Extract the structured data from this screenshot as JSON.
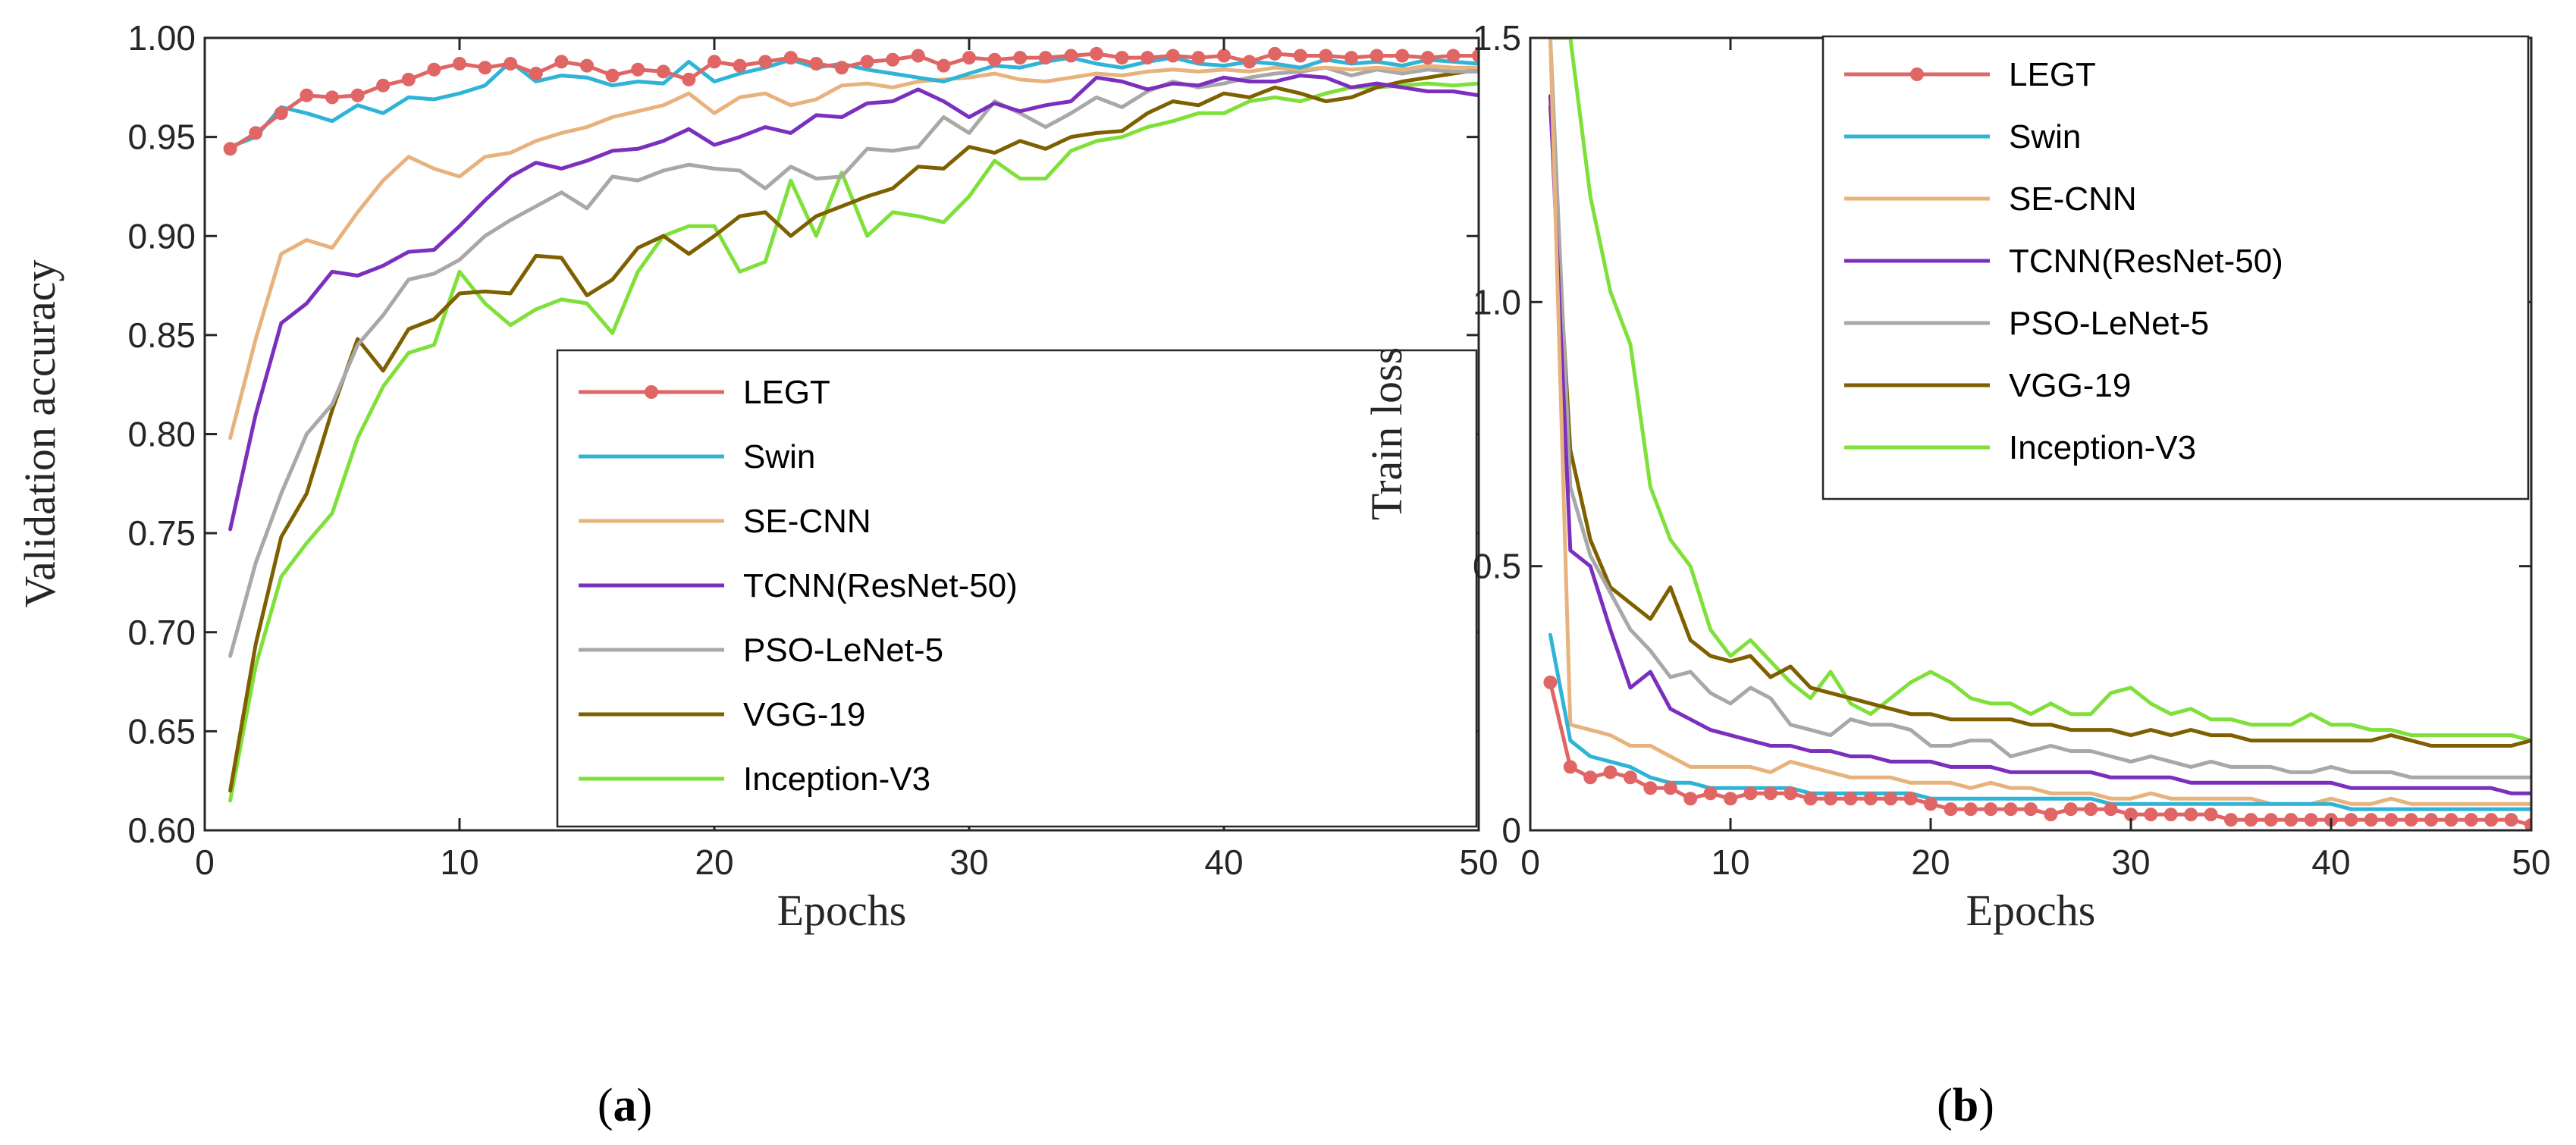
{
  "series_meta": [
    {
      "name": "LEGT",
      "color": "#e06666",
      "marker": "circle"
    },
    {
      "name": "Swin",
      "color": "#2fb4d8",
      "marker": "none"
    },
    {
      "name": "SE-CNN",
      "color": "#e8b27d",
      "marker": "none"
    },
    {
      "name": "TCNN(ResNet-50)",
      "color": "#7b2fbe",
      "marker": "none"
    },
    {
      "name": "PSO-LeNet-5",
      "color": "#a8a8a8",
      "marker": "none"
    },
    {
      "name": "VGG-19",
      "color": "#7f6000",
      "marker": "none"
    },
    {
      "name": "Inception-V3",
      "color": "#7fe03a",
      "marker": "none"
    }
  ],
  "captions": {
    "a": "a",
    "b": "b"
  },
  "chart_data": [
    {
      "type": "line",
      "panel": "a",
      "title": "",
      "xlabel": "Epochs",
      "ylabel": "Validation accuracy",
      "xlim": [
        0,
        50
      ],
      "ylim": [
        0.6,
        1.0
      ],
      "xticks": [
        0,
        10,
        20,
        30,
        40,
        50
      ],
      "xtick_labels": [
        "0",
        "10",
        "20",
        "30",
        "40",
        "50"
      ],
      "yticks": [
        0.6,
        0.65,
        0.7,
        0.75,
        0.8,
        0.85,
        0.9,
        0.95,
        1.0
      ],
      "ytick_labels": [
        "0.60",
        "0.65",
        "0.70",
        "0.75",
        "0.80",
        "0.85",
        "0.90",
        "0.95",
        "1.00"
      ],
      "grid": false,
      "legend_position": "lower-right",
      "x": [
        1,
        2,
        3,
        4,
        5,
        6,
        7,
        8,
        9,
        10,
        11,
        12,
        13,
        14,
        15,
        16,
        17,
        18,
        19,
        20,
        21,
        22,
        23,
        24,
        25,
        26,
        27,
        28,
        29,
        30,
        31,
        32,
        33,
        34,
        35,
        36,
        37,
        38,
        39,
        40,
        41,
        42,
        43,
        44,
        45,
        46,
        47,
        48,
        49,
        50
      ],
      "series": [
        {
          "name": "LEGT",
          "values": [
            0.944,
            0.952,
            0.962,
            0.971,
            0.97,
            0.971,
            0.976,
            0.979,
            0.984,
            0.987,
            0.985,
            0.987,
            0.982,
            0.988,
            0.986,
            0.981,
            0.984,
            0.983,
            0.979,
            0.988,
            0.986,
            0.988,
            0.99,
            0.987,
            0.985,
            0.988,
            0.989,
            0.991,
            0.986,
            0.99,
            0.989,
            0.99,
            0.99,
            0.991,
            0.992,
            0.99,
            0.99,
            0.991,
            0.99,
            0.991,
            0.988,
            0.992,
            0.991,
            0.991,
            0.99,
            0.991,
            0.991,
            0.99,
            0.991,
            0.991
          ]
        },
        {
          "name": "Swin",
          "values": [
            0.945,
            0.95,
            0.965,
            0.962,
            0.958,
            0.966,
            0.962,
            0.97,
            0.969,
            0.972,
            0.976,
            0.988,
            0.978,
            0.981,
            0.98,
            0.976,
            0.978,
            0.977,
            0.988,
            0.978,
            0.982,
            0.985,
            0.989,
            0.985,
            0.987,
            0.984,
            0.982,
            0.98,
            0.978,
            0.982,
            0.986,
            0.985,
            0.988,
            0.99,
            0.987,
            0.985,
            0.988,
            0.99,
            0.987,
            0.986,
            0.988,
            0.987,
            0.985,
            0.989,
            0.987,
            0.988,
            0.986,
            0.989,
            0.988,
            0.987
          ]
        },
        {
          "name": "SE-CNN",
          "values": [
            0.798,
            0.848,
            0.891,
            0.898,
            0.894,
            0.912,
            0.928,
            0.94,
            0.934,
            0.93,
            0.94,
            0.942,
            0.948,
            0.952,
            0.955,
            0.96,
            0.963,
            0.966,
            0.972,
            0.962,
            0.97,
            0.972,
            0.966,
            0.969,
            0.976,
            0.977,
            0.975,
            0.978,
            0.979,
            0.98,
            0.982,
            0.979,
            0.978,
            0.98,
            0.982,
            0.981,
            0.983,
            0.984,
            0.983,
            0.984,
            0.983,
            0.985,
            0.984,
            0.985,
            0.984,
            0.985,
            0.984,
            0.986,
            0.985,
            0.985
          ]
        },
        {
          "name": "TCNN(ResNet-50)",
          "values": [
            0.752,
            0.81,
            0.856,
            0.866,
            0.882,
            0.88,
            0.885,
            0.892,
            0.893,
            0.905,
            0.918,
            0.93,
            0.937,
            0.934,
            0.938,
            0.943,
            0.944,
            0.948,
            0.954,
            0.946,
            0.95,
            0.955,
            0.952,
            0.961,
            0.96,
            0.967,
            0.968,
            0.974,
            0.968,
            0.96,
            0.967,
            0.963,
            0.966,
            0.968,
            0.98,
            0.978,
            0.974,
            0.977,
            0.976,
            0.98,
            0.978,
            0.978,
            0.981,
            0.98,
            0.975,
            0.977,
            0.975,
            0.973,
            0.973,
            0.971
          ]
        },
        {
          "name": "PSO-LeNet-5",
          "values": [
            0.688,
            0.735,
            0.77,
            0.8,
            0.815,
            0.845,
            0.86,
            0.878,
            0.881,
            0.888,
            0.9,
            0.908,
            0.915,
            0.922,
            0.914,
            0.93,
            0.928,
            0.933,
            0.936,
            0.934,
            0.933,
            0.924,
            0.935,
            0.929,
            0.93,
            0.944,
            0.943,
            0.945,
            0.96,
            0.952,
            0.968,
            0.962,
            0.955,
            0.962,
            0.97,
            0.965,
            0.973,
            0.978,
            0.975,
            0.977,
            0.98,
            0.982,
            0.983,
            0.985,
            0.981,
            0.984,
            0.982,
            0.984,
            0.983,
            0.983
          ]
        },
        {
          "name": "VGG-19",
          "values": [
            0.62,
            0.694,
            0.748,
            0.77,
            0.812,
            0.848,
            0.832,
            0.853,
            0.858,
            0.871,
            0.872,
            0.871,
            0.89,
            0.889,
            0.87,
            0.878,
            0.894,
            0.9,
            0.891,
            0.9,
            0.91,
            0.912,
            0.9,
            0.91,
            0.915,
            0.92,
            0.924,
            0.935,
            0.934,
            0.945,
            0.942,
            0.948,
            0.944,
            0.95,
            0.952,
            0.953,
            0.962,
            0.968,
            0.966,
            0.972,
            0.97,
            0.975,
            0.972,
            0.968,
            0.97,
            0.975,
            0.978,
            0.98,
            0.982,
            0.984
          ]
        },
        {
          "name": "Inception-V3",
          "values": [
            0.615,
            0.683,
            0.728,
            0.745,
            0.76,
            0.798,
            0.824,
            0.841,
            0.845,
            0.882,
            0.866,
            0.855,
            0.863,
            0.868,
            0.866,
            0.851,
            0.882,
            0.9,
            0.905,
            0.905,
            0.882,
            0.887,
            0.928,
            0.9,
            0.932,
            0.9,
            0.912,
            0.91,
            0.907,
            0.92,
            0.938,
            0.929,
            0.929,
            0.943,
            0.948,
            0.95,
            0.955,
            0.958,
            0.962,
            0.962,
            0.968,
            0.97,
            0.968,
            0.972,
            0.975,
            0.975,
            0.976,
            0.977,
            0.976,
            0.977
          ]
        }
      ]
    },
    {
      "type": "line",
      "panel": "b",
      "title": "",
      "xlabel": "Epochs",
      "ylabel": "Train loss",
      "xlim": [
        0,
        50
      ],
      "ylim": [
        0,
        1.5
      ],
      "xticks": [
        0,
        10,
        20,
        30,
        40,
        50
      ],
      "xtick_labels": [
        "0",
        "10",
        "20",
        "30",
        "40",
        "50"
      ],
      "yticks": [
        0,
        0.5,
        1.0,
        1.5
      ],
      "ytick_labels": [
        "0",
        "0.5",
        "1.0",
        "1.5"
      ],
      "grid": false,
      "legend_position": "top-right",
      "x": [
        1,
        2,
        3,
        4,
        5,
        6,
        7,
        8,
        9,
        10,
        11,
        12,
        13,
        14,
        15,
        16,
        17,
        18,
        19,
        20,
        21,
        22,
        23,
        24,
        25,
        26,
        27,
        28,
        29,
        30,
        31,
        32,
        33,
        34,
        35,
        36,
        37,
        38,
        39,
        40,
        41,
        42,
        43,
        44,
        45,
        46,
        47,
        48,
        49,
        50
      ],
      "series": [
        {
          "name": "LEGT",
          "values": [
            0.28,
            0.12,
            0.1,
            0.11,
            0.1,
            0.08,
            0.08,
            0.06,
            0.07,
            0.06,
            0.07,
            0.07,
            0.07,
            0.06,
            0.06,
            0.06,
            0.06,
            0.06,
            0.06,
            0.05,
            0.04,
            0.04,
            0.04,
            0.04,
            0.04,
            0.03,
            0.04,
            0.04,
            0.04,
            0.03,
            0.03,
            0.03,
            0.03,
            0.03,
            0.02,
            0.02,
            0.02,
            0.02,
            0.02,
            0.02,
            0.02,
            0.02,
            0.02,
            0.02,
            0.02,
            0.02,
            0.02,
            0.02,
            0.02,
            0.01
          ]
        },
        {
          "name": "Swin",
          "values": [
            0.37,
            0.17,
            0.14,
            0.13,
            0.12,
            0.1,
            0.09,
            0.09,
            0.08,
            0.08,
            0.08,
            0.08,
            0.08,
            0.07,
            0.07,
            0.07,
            0.07,
            0.07,
            0.07,
            0.06,
            0.06,
            0.06,
            0.06,
            0.06,
            0.06,
            0.06,
            0.06,
            0.06,
            0.05,
            0.05,
            0.05,
            0.05,
            0.05,
            0.05,
            0.05,
            0.05,
            0.05,
            0.05,
            0.05,
            0.05,
            0.04,
            0.04,
            0.04,
            0.04,
            0.04,
            0.04,
            0.04,
            0.04,
            0.04,
            0.04
          ]
        },
        {
          "name": "SE-CNN",
          "values": [
            1.5,
            0.2,
            0.19,
            0.18,
            0.16,
            0.16,
            0.14,
            0.12,
            0.12,
            0.12,
            0.12,
            0.11,
            0.13,
            0.12,
            0.11,
            0.1,
            0.1,
            0.1,
            0.09,
            0.09,
            0.09,
            0.08,
            0.09,
            0.08,
            0.08,
            0.07,
            0.07,
            0.07,
            0.06,
            0.06,
            0.07,
            0.06,
            0.06,
            0.06,
            0.06,
            0.06,
            0.05,
            0.05,
            0.05,
            0.06,
            0.05,
            0.05,
            0.06,
            0.05,
            0.05,
            0.05,
            0.05,
            0.05,
            0.05,
            0.05
          ]
        },
        {
          "name": "TCNN(ResNet-50)",
          "values": [
            1.39,
            0.53,
            0.5,
            0.38,
            0.27,
            0.3,
            0.23,
            0.21,
            0.19,
            0.18,
            0.17,
            0.16,
            0.16,
            0.15,
            0.15,
            0.14,
            0.14,
            0.13,
            0.13,
            0.13,
            0.12,
            0.12,
            0.12,
            0.11,
            0.11,
            0.11,
            0.11,
            0.11,
            0.1,
            0.1,
            0.1,
            0.1,
            0.09,
            0.09,
            0.09,
            0.09,
            0.09,
            0.09,
            0.09,
            0.09,
            0.08,
            0.08,
            0.08,
            0.08,
            0.08,
            0.08,
            0.08,
            0.08,
            0.07,
            0.07
          ]
        },
        {
          "name": "PSO-LeNet-5",
          "values": [
            1.5,
            0.65,
            0.52,
            0.45,
            0.38,
            0.34,
            0.29,
            0.3,
            0.26,
            0.24,
            0.27,
            0.25,
            0.2,
            0.19,
            0.18,
            0.21,
            0.2,
            0.2,
            0.19,
            0.16,
            0.16,
            0.17,
            0.17,
            0.14,
            0.15,
            0.16,
            0.15,
            0.15,
            0.14,
            0.13,
            0.14,
            0.13,
            0.12,
            0.13,
            0.12,
            0.12,
            0.12,
            0.11,
            0.11,
            0.12,
            0.11,
            0.11,
            0.11,
            0.1,
            0.1,
            0.1,
            0.1,
            0.1,
            0.1,
            0.1
          ]
        },
        {
          "name": "VGG-19",
          "values": [
            1.37,
            0.72,
            0.55,
            0.46,
            0.43,
            0.4,
            0.46,
            0.36,
            0.33,
            0.32,
            0.33,
            0.29,
            0.31,
            0.27,
            0.26,
            0.25,
            0.24,
            0.23,
            0.22,
            0.22,
            0.21,
            0.21,
            0.21,
            0.21,
            0.2,
            0.2,
            0.19,
            0.19,
            0.19,
            0.18,
            0.19,
            0.18,
            0.19,
            0.18,
            0.18,
            0.17,
            0.17,
            0.17,
            0.17,
            0.17,
            0.17,
            0.17,
            0.18,
            0.17,
            0.16,
            0.16,
            0.16,
            0.16,
            0.16,
            0.17
          ]
        },
        {
          "name": "Inception-V3",
          "values": [
            1.5,
            1.5,
            1.2,
            1.02,
            0.92,
            0.65,
            0.55,
            0.5,
            0.38,
            0.33,
            0.36,
            0.32,
            0.28,
            0.25,
            0.3,
            0.24,
            0.22,
            0.25,
            0.28,
            0.3,
            0.28,
            0.25,
            0.24,
            0.24,
            0.22,
            0.24,
            0.22,
            0.22,
            0.26,
            0.27,
            0.24,
            0.22,
            0.23,
            0.21,
            0.21,
            0.2,
            0.2,
            0.2,
            0.22,
            0.2,
            0.2,
            0.19,
            0.19,
            0.18,
            0.18,
            0.18,
            0.18,
            0.18,
            0.18,
            0.17
          ]
        }
      ]
    }
  ]
}
